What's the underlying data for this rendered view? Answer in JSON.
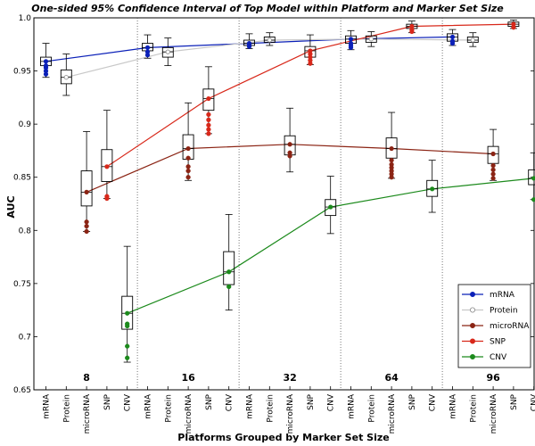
{
  "chart_data": {
    "type": "box",
    "title": "One-sided 95% Confidence Interval of Top Model within Platform and Marker Set Size",
    "xlabel": "Platforms Grouped by Marker Set Size",
    "ylabel": "AUC",
    "ylim": [
      0.65,
      1.0
    ],
    "yticks": [
      "0.65",
      "0.7",
      "0.75",
      "0.8",
      "0.85",
      "0.9",
      "0.95",
      "1.0"
    ],
    "platforms": [
      "mRNA",
      "Protein",
      "microRNA",
      "SNP",
      "CNV"
    ],
    "groups": [
      "8",
      "16",
      "32",
      "64",
      "96"
    ],
    "legend": [
      {
        "name": "mRNA",
        "color": "#0b20b8"
      },
      {
        "name": "Protein",
        "color": "#c8c8c8"
      },
      {
        "name": "microRNA",
        "color": "#8b2414"
      },
      {
        "name": "SNP",
        "color": "#d8281a"
      },
      {
        "name": "CNV",
        "color": "#1c8a1c"
      }
    ],
    "series": [
      {
        "name": "mRNA",
        "values": [
          0.959,
          0.972,
          0.976,
          0.98,
          0.982
        ]
      },
      {
        "name": "Protein",
        "values": [
          0.944,
          0.968,
          0.979,
          0.98,
          0.979
        ]
      },
      {
        "name": "microRNA",
        "values": [
          0.836,
          0.877,
          0.881,
          0.877,
          0.872
        ]
      },
      {
        "name": "SNP",
        "values": [
          0.86,
          0.924,
          0.969,
          0.992,
          0.994
        ]
      },
      {
        "name": "CNV",
        "values": [
          0.722,
          0.761,
          0.822,
          0.839,
          0.849
        ]
      }
    ],
    "boxes": [
      [
        {
          "whislo": 0.944,
          "q1": 0.955,
          "med": 0.959,
          "q3": 0.963,
          "whishi": 0.976,
          "fliers": [
            0.947,
            0.95,
            0.953,
            0.955
          ]
        },
        {
          "whislo": 0.927,
          "q1": 0.938,
          "med": 0.944,
          "q3": 0.951,
          "whishi": 0.966,
          "fliers": []
        },
        {
          "whislo": 0.799,
          "q1": 0.823,
          "med": 0.836,
          "q3": 0.856,
          "whishi": 0.893,
          "fliers": [
            0.799,
            0.804,
            0.808
          ]
        },
        {
          "whislo": 0.83,
          "q1": 0.846,
          "med": 0.86,
          "q3": 0.876,
          "whishi": 0.913,
          "fliers": [
            0.83,
            0.832
          ]
        },
        {
          "whislo": 0.676,
          "q1": 0.707,
          "med": 0.722,
          "q3": 0.738,
          "whishi": 0.785,
          "fliers": [
            0.68,
            0.691,
            0.71,
            0.712
          ]
        }
      ],
      [
        {
          "whislo": 0.962,
          "q1": 0.969,
          "med": 0.972,
          "q3": 0.976,
          "whishi": 0.984,
          "fliers": [
            0.965,
            0.968
          ]
        },
        {
          "whislo": 0.955,
          "q1": 0.963,
          "med": 0.968,
          "q3": 0.972,
          "whishi": 0.981,
          "fliers": []
        },
        {
          "whislo": 0.847,
          "q1": 0.867,
          "med": 0.877,
          "q3": 0.89,
          "whishi": 0.92,
          "fliers": [
            0.85,
            0.856,
            0.86,
            0.868
          ]
        },
        {
          "whislo": 0.891,
          "q1": 0.913,
          "med": 0.924,
          "q3": 0.933,
          "whishi": 0.954,
          "fliers": [
            0.891,
            0.895,
            0.899,
            0.904,
            0.909
          ]
        },
        {
          "whislo": 0.725,
          "q1": 0.749,
          "med": 0.761,
          "q3": 0.78,
          "whishi": 0.815,
          "fliers": [
            0.747
          ]
        }
      ],
      [
        {
          "whislo": 0.971,
          "q1": 0.974,
          "med": 0.976,
          "q3": 0.979,
          "whishi": 0.985,
          "fliers": [
            0.973,
            0.975
          ]
        },
        {
          "whislo": 0.974,
          "q1": 0.977,
          "med": 0.979,
          "q3": 0.982,
          "whishi": 0.986,
          "fliers": []
        },
        {
          "whislo": 0.855,
          "q1": 0.871,
          "med": 0.881,
          "q3": 0.889,
          "whishi": 0.915,
          "fliers": [
            0.87,
            0.873
          ]
        },
        {
          "whislo": 0.956,
          "q1": 0.963,
          "med": 0.969,
          "q3": 0.973,
          "whishi": 0.984,
          "fliers": [
            0.957,
            0.96,
            0.963,
            0.966
          ]
        },
        {
          "whislo": 0.797,
          "q1": 0.814,
          "med": 0.822,
          "q3": 0.829,
          "whishi": 0.851,
          "fliers": []
        }
      ],
      [
        {
          "whislo": 0.97,
          "q1": 0.976,
          "med": 0.98,
          "q3": 0.983,
          "whishi": 0.988,
          "fliers": [
            0.972,
            0.974,
            0.976
          ]
        },
        {
          "whislo": 0.973,
          "q1": 0.977,
          "med": 0.98,
          "q3": 0.983,
          "whishi": 0.987,
          "fliers": []
        },
        {
          "whislo": 0.849,
          "q1": 0.868,
          "med": 0.877,
          "q3": 0.887,
          "whishi": 0.911,
          "fliers": [
            0.85,
            0.853,
            0.856,
            0.859,
            0.862,
            0.866
          ]
        },
        {
          "whislo": 0.986,
          "q1": 0.99,
          "med": 0.992,
          "q3": 0.994,
          "whishi": 0.997,
          "fliers": [
            0.987,
            0.989
          ]
        },
        {
          "whislo": 0.817,
          "q1": 0.832,
          "med": 0.839,
          "q3": 0.847,
          "whishi": 0.866,
          "fliers": []
        }
      ],
      [
        {
          "whislo": 0.974,
          "q1": 0.978,
          "med": 0.982,
          "q3": 0.985,
          "whishi": 0.989,
          "fliers": [
            0.976,
            0.978
          ]
        },
        {
          "whislo": 0.973,
          "q1": 0.977,
          "med": 0.979,
          "q3": 0.982,
          "whishi": 0.986,
          "fliers": []
        },
        {
          "whislo": 0.847,
          "q1": 0.863,
          "med": 0.872,
          "q3": 0.879,
          "whishi": 0.895,
          "fliers": [
            0.849,
            0.853,
            0.857,
            0.861
          ]
        },
        {
          "whislo": 0.99,
          "q1": 0.992,
          "med": 0.994,
          "q3": 0.996,
          "whishi": 0.998,
          "fliers": [
            0.991
          ]
        },
        {
          "whislo": 0.829,
          "q1": 0.843,
          "med": 0.849,
          "q3": 0.857,
          "whishi": 0.873,
          "fliers": [
            0.829
          ]
        }
      ]
    ]
  }
}
